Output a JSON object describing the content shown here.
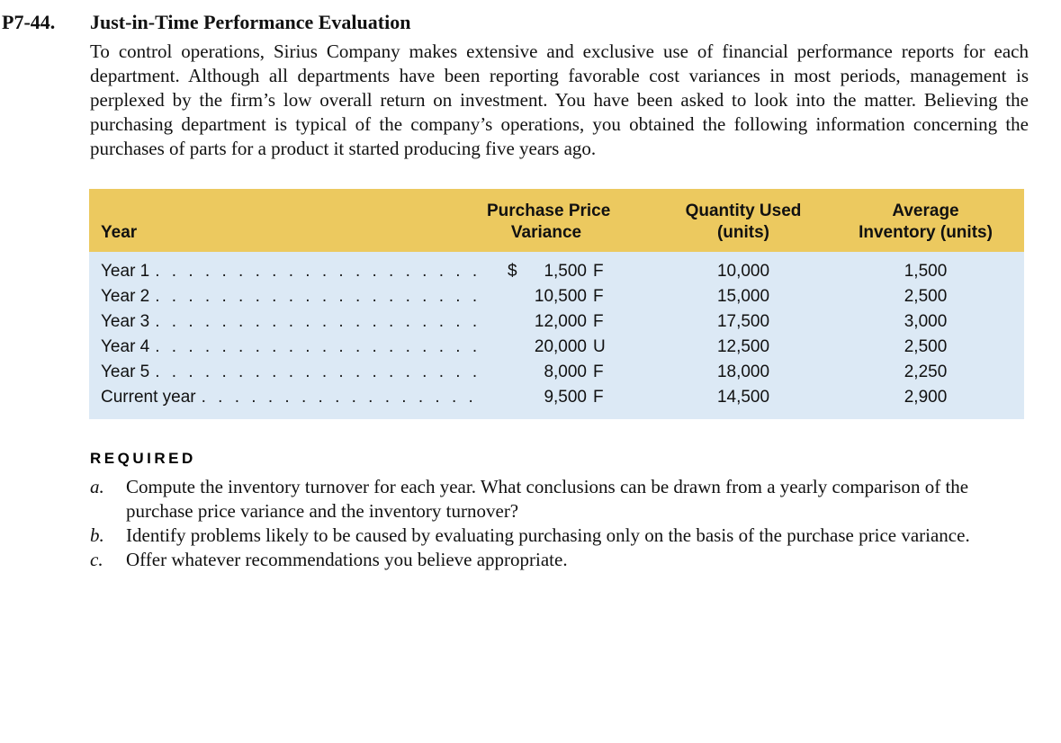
{
  "problem": {
    "number": "P7-44.",
    "title": "Just-in-Time Performance Evaluation",
    "intro": "To control operations, Sirius Company makes extensive and exclusive use of financial performance reports for each department. Although all departments have been reporting favorable cost variances in most periods, management is perplexed by the firm’s low overall return on investment. You have been asked to look into the matter. Believing the purchasing department is typical of the company’s operations, you obtained the following information concerning the purchases of parts for a product it started producing five years ago."
  },
  "table": {
    "header": {
      "year": "Year",
      "variance": [
        "Purchase Price",
        "Variance"
      ],
      "quantity": [
        "Quantity Used",
        "(units)"
      ],
      "inventory": [
        "Average",
        "Inventory (units)"
      ]
    },
    "rows": [
      {
        "label": "Year 1",
        "currency": "$",
        "variance": "1,500",
        "flag": "F",
        "quantity": "10,000",
        "inventory": "1,500"
      },
      {
        "label": "Year 2",
        "currency": "",
        "variance": "10,500",
        "flag": "F",
        "quantity": "15,000",
        "inventory": "2,500"
      },
      {
        "label": "Year 3",
        "currency": "",
        "variance": "12,000",
        "flag": "F",
        "quantity": "17,500",
        "inventory": "3,000"
      },
      {
        "label": "Year 4",
        "currency": "",
        "variance": "20,000",
        "flag": "U",
        "quantity": "12,500",
        "inventory": "2,500"
      },
      {
        "label": "Year 5",
        "currency": "",
        "variance": "8,000",
        "flag": "F",
        "quantity": "18,000",
        "inventory": "2,250"
      },
      {
        "label": "Current year",
        "currency": "",
        "variance": "9,500",
        "flag": "F",
        "quantity": "14,500",
        "inventory": "2,900"
      }
    ]
  },
  "required": {
    "heading": "REQUIRED",
    "items": [
      {
        "marker": "a.",
        "text": "Compute the inventory turnover for each year. What conclusions can be drawn from a yearly comparison of the purchase price variance and the inventory turnover?"
      },
      {
        "marker": "b.",
        "text": "Identify problems likely to be caused by evaluating purchasing only on the basis of the purchase price variance."
      },
      {
        "marker": "c.",
        "text": "Offer whatever recommendations you believe appropriate."
      }
    ]
  },
  "colors": {
    "table_header_bg": "#ecc95f",
    "table_body_bg": "#dce9f5",
    "text": "#111111"
  }
}
